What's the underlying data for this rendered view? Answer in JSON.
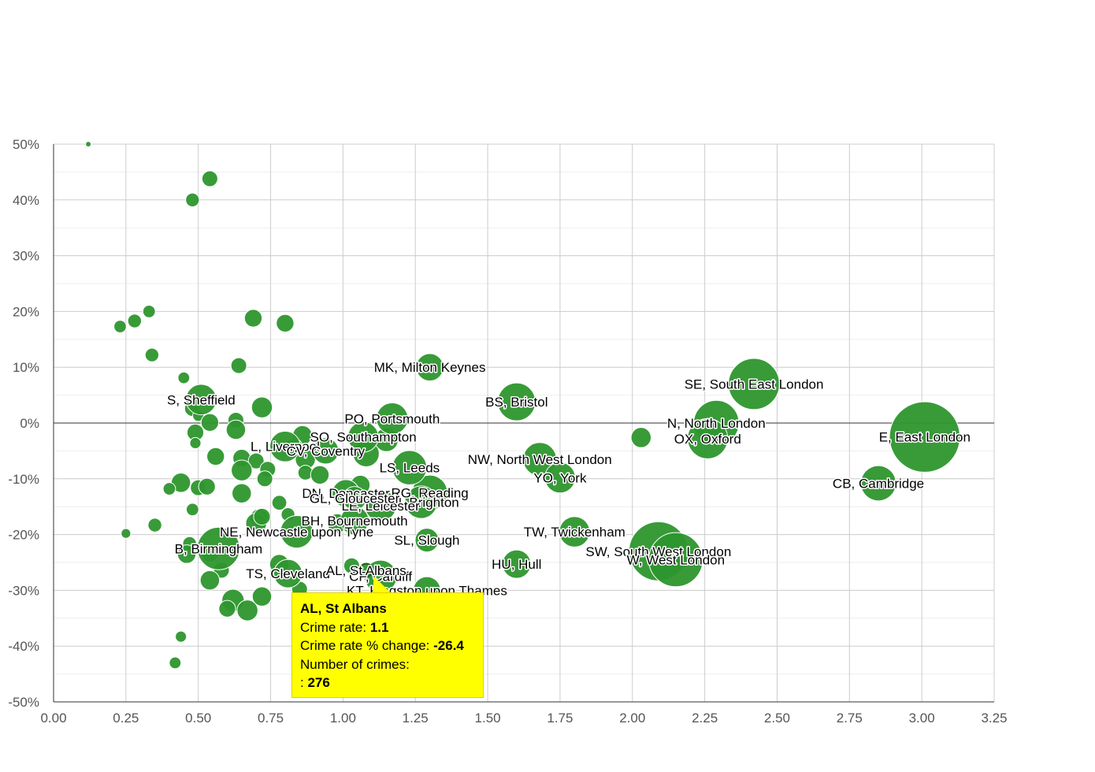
{
  "chart_data": {
    "type": "scatter",
    "bubble": true,
    "x_ticks": [
      "0.00",
      "0.25",
      "0.50",
      "0.75",
      "1.00",
      "1.25",
      "1.50",
      "1.75",
      "2.00",
      "2.25",
      "2.50",
      "2.75",
      "3.00",
      "3.25"
    ],
    "y_ticks": [
      "50%",
      "40%",
      "30%",
      "20%",
      "10%",
      "0%",
      "-10%",
      "-20%",
      "-30%",
      "-40%",
      "-50%"
    ],
    "xlim": [
      0,
      3.25
    ],
    "ylim": [
      -50,
      50
    ],
    "grid": true,
    "color": "#2d962d",
    "labeled_points": [
      {
        "label": "E, East London",
        "x": 3.01,
        "y": -2.5,
        "z": 8000
      },
      {
        "label": "SE, South East London",
        "x": 2.42,
        "y": 7,
        "z": 4200
      },
      {
        "label": "N, North London",
        "x": 2.29,
        "y": 0,
        "z": 3300
      },
      {
        "label": "OX, Oxford",
        "x": 2.26,
        "y": -2.8,
        "z": 2600
      },
      {
        "label": "CB, Cambridge",
        "x": 2.85,
        "y": -10.8,
        "z": 2000
      },
      {
        "label": "SW, South West London",
        "x": 2.09,
        "y": -23,
        "z": 5600
      },
      {
        "label": "W, West London",
        "x": 2.15,
        "y": -24.5,
        "z": 4700
      },
      {
        "label": "NW, North West London",
        "x": 1.68,
        "y": -6.5,
        "z": 1800
      },
      {
        "label": "YO, York",
        "x": 1.75,
        "y": -9.8,
        "z": 1500
      },
      {
        "label": "TW, Twickenham",
        "x": 1.8,
        "y": -19.5,
        "z": 1500
      },
      {
        "label": "HU, Hull",
        "x": 1.6,
        "y": -25.3,
        "z": 1300
      },
      {
        "label": "BS, Bristol",
        "x": 1.6,
        "y": 3.8,
        "z": 2300
      },
      {
        "label": "MK, Milton Keynes",
        "x": 1.3,
        "y": 10,
        "z": 1200
      },
      {
        "label": "PO, Portsmouth",
        "x": 1.17,
        "y": 0.8,
        "z": 1600
      },
      {
        "label": "SO, Southampton",
        "x": 1.07,
        "y": -2.5,
        "z": 1500
      },
      {
        "label": "SL, Slough",
        "x": 1.29,
        "y": -21,
        "z": 900
      },
      {
        "label": "RG, Reading",
        "x": 1.3,
        "y": -12.5,
        "z": 2000
      },
      {
        "label": "BN, Brighton",
        "x": 1.27,
        "y": -14.2,
        "z": 1700
      },
      {
        "label": "LE, Leicester",
        "x": 1.13,
        "y": -14.8,
        "z": 1600
      },
      {
        "label": "LS, Leeds",
        "x": 1.23,
        "y": -8,
        "z": 1900
      },
      {
        "label": "DN, Doncaster",
        "x": 1.01,
        "y": -12.6,
        "z": 1200
      },
      {
        "label": "GL, Gloucester",
        "x": 1.04,
        "y": -13.5,
        "z": 900
      },
      {
        "label": "BH, Bournemouth",
        "x": 1.04,
        "y": -17.5,
        "z": 1300
      },
      {
        "label": "L, Liverpool",
        "x": 0.8,
        "y": -4.2,
        "z": 1500
      },
      {
        "label": "CV, Coventry",
        "x": 0.94,
        "y": -5,
        "z": 1100
      },
      {
        "label": "S, Sheffield",
        "x": 0.51,
        "y": 4.2,
        "z": 1500
      },
      {
        "label": "NE, Newcastle upon Tyne",
        "x": 0.84,
        "y": -19.5,
        "z": 1700
      },
      {
        "label": "B, Birmingham",
        "x": 0.57,
        "y": -22.5,
        "z": 2900
      },
      {
        "label": "TS, Cleveland",
        "x": 0.81,
        "y": -27,
        "z": 1300
      },
      {
        "label": "CF, Cardiff",
        "x": 1.13,
        "y": -27.5,
        "z": 1700
      },
      {
        "label": "KT, Kingston upon Thames",
        "x": 1.29,
        "y": -30,
        "z": 1200
      },
      {
        "label": "AL, St Albans",
        "x": 1.08,
        "y": -26.4,
        "z": 276
      }
    ],
    "points": [
      {
        "x": 0.12,
        "y": 50,
        "z": 50
      },
      {
        "x": 0.54,
        "y": 43.8,
        "z": 400
      },
      {
        "x": 0.48,
        "y": 40,
        "z": 300
      },
      {
        "x": 0.23,
        "y": 17.3,
        "z": 250
      },
      {
        "x": 0.28,
        "y": 18.3,
        "z": 300
      },
      {
        "x": 0.33,
        "y": 20,
        "z": 250
      },
      {
        "x": 0.69,
        "y": 18.8,
        "z": 500
      },
      {
        "x": 0.8,
        "y": 17.9,
        "z": 500
      },
      {
        "x": 0.34,
        "y": 12.2,
        "z": 300
      },
      {
        "x": 0.64,
        "y": 10.3,
        "z": 400
      },
      {
        "x": 0.45,
        "y": 8.1,
        "z": 220
      },
      {
        "x": 0.48,
        "y": 2.6,
        "z": 400
      },
      {
        "x": 0.5,
        "y": 1.3,
        "z": 200
      },
      {
        "x": 0.54,
        "y": 0.1,
        "z": 500
      },
      {
        "x": 0.63,
        "y": 0.5,
        "z": 400
      },
      {
        "x": 0.72,
        "y": 2.8,
        "z": 700
      },
      {
        "x": 0.49,
        "y": -1.7,
        "z": 450
      },
      {
        "x": 0.49,
        "y": -3.6,
        "z": 200
      },
      {
        "x": 0.63,
        "y": -1.2,
        "z": 600
      },
      {
        "x": 0.56,
        "y": -6,
        "z": 500
      },
      {
        "x": 0.65,
        "y": -6.3,
        "z": 500
      },
      {
        "x": 0.7,
        "y": -6.8,
        "z": 400
      },
      {
        "x": 0.65,
        "y": -8.5,
        "z": 700
      },
      {
        "x": 0.74,
        "y": -8.3,
        "z": 400
      },
      {
        "x": 0.73,
        "y": -10,
        "z": 400
      },
      {
        "x": 0.44,
        "y": -10.7,
        "z": 600
      },
      {
        "x": 0.4,
        "y": -11.8,
        "z": 250
      },
      {
        "x": 0.5,
        "y": -11.6,
        "z": 400
      },
      {
        "x": 0.53,
        "y": -11.4,
        "z": 450
      },
      {
        "x": 0.65,
        "y": -12.6,
        "z": 600
      },
      {
        "x": 0.78,
        "y": -14.3,
        "z": 350
      },
      {
        "x": 0.48,
        "y": -15.5,
        "z": 250
      },
      {
        "x": 0.35,
        "y": -18.3,
        "z": 300
      },
      {
        "x": 0.25,
        "y": -19.8,
        "z": 150
      },
      {
        "x": 0.71,
        "y": -17,
        "z": 500
      },
      {
        "x": 0.7,
        "y": -18,
        "z": 700
      },
      {
        "x": 0.72,
        "y": -16.8,
        "z": 450
      },
      {
        "x": 0.47,
        "y": -21.6,
        "z": 300
      },
      {
        "x": 0.46,
        "y": -23.5,
        "z": 550
      },
      {
        "x": 0.54,
        "y": -23.4,
        "z": 450
      },
      {
        "x": 0.58,
        "y": -26.4,
        "z": 400
      },
      {
        "x": 0.54,
        "y": -28.2,
        "z": 600
      },
      {
        "x": 0.62,
        "y": -31.8,
        "z": 800
      },
      {
        "x": 0.6,
        "y": -33.3,
        "z": 450
      },
      {
        "x": 0.67,
        "y": -33.6,
        "z": 700
      },
      {
        "x": 0.72,
        "y": -31.1,
        "z": 600
      },
      {
        "x": 0.78,
        "y": -25.3,
        "z": 600
      },
      {
        "x": 0.85,
        "y": -29.8,
        "z": 400
      },
      {
        "x": 0.44,
        "y": -38.3,
        "z": 200
      },
      {
        "x": 0.42,
        "y": -43,
        "z": 220
      },
      {
        "x": 0.86,
        "y": -2.2,
        "z": 600
      },
      {
        "x": 0.83,
        "y": -4.3,
        "z": 500
      },
      {
        "x": 0.87,
        "y": -6.5,
        "z": 650
      },
      {
        "x": 0.87,
        "y": -8.9,
        "z": 350
      },
      {
        "x": 0.92,
        "y": -9.3,
        "z": 550
      },
      {
        "x": 1.06,
        "y": -11.1,
        "z": 600
      },
      {
        "x": 0.98,
        "y": -18,
        "z": 600
      },
      {
        "x": 1.03,
        "y": -25.6,
        "z": 400
      },
      {
        "x": 1.08,
        "y": -5.5,
        "z": 1100
      },
      {
        "x": 1.15,
        "y": -3,
        "z": 900
      },
      {
        "x": 2.03,
        "y": -2.6,
        "z": 650
      },
      {
        "x": 0.81,
        "y": -16.4,
        "z": 300
      }
    ]
  },
  "tooltip": {
    "title": "AL, St Albans",
    "rate_label": "Crime rate:",
    "rate_value": "1.1",
    "change_label": "Crime rate % change:",
    "change_value": "-26.4",
    "count_label": "Number of crimes:",
    "count_prefix": ":",
    "count_value": "276"
  }
}
